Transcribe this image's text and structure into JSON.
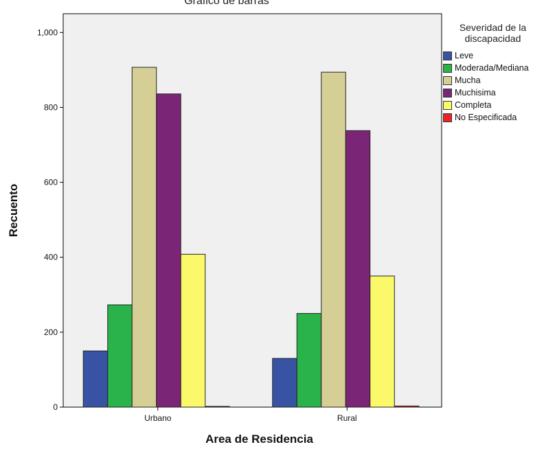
{
  "chart_data": {
    "type": "bar",
    "title": "Gráfico de barras",
    "xlabel": "Area de Residencia",
    "ylabel": "Recuento",
    "categories": [
      "Urbano",
      "Rural"
    ],
    "ylim": [
      0,
      1050
    ],
    "yticks": [
      0,
      200,
      400,
      600,
      800,
      1000
    ],
    "ytick_labels": [
      "0",
      "200",
      "400",
      "600",
      "800",
      "1,000"
    ],
    "legend_title": "Severidad de la discapacidad",
    "legend_position": "right",
    "grid": false,
    "series": [
      {
        "name": "Leve",
        "color": "#3953a4",
        "values": [
          150,
          130
        ]
      },
      {
        "name": "Moderada/Mediana",
        "color": "#2ab34a",
        "values": [
          273,
          250
        ]
      },
      {
        "name": "Mucha",
        "color": "#d5cf96",
        "values": [
          907,
          894
        ]
      },
      {
        "name": "Muchisima",
        "color": "#7b2576",
        "values": [
          836,
          738
        ]
      },
      {
        "name": "Completa",
        "color": "#fbf869",
        "values": [
          408,
          350
        ]
      },
      {
        "name": "No Especificada",
        "color": "#ec2227",
        "values": [
          2,
          3
        ]
      }
    ],
    "plot_background": "#f0f0f0"
  }
}
